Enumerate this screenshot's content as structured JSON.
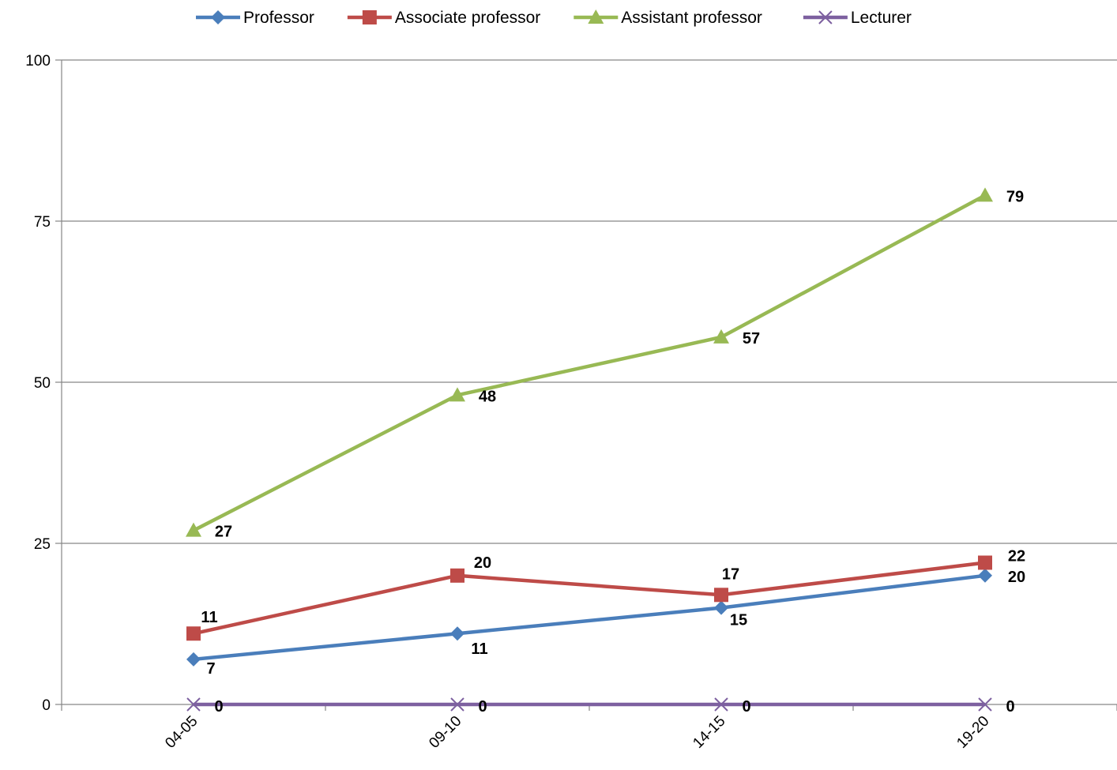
{
  "chart_data": {
    "type": "line",
    "categories": [
      "04-05",
      "09-10",
      "14-15",
      "19-20"
    ],
    "ylim": [
      0,
      100
    ],
    "yticks": [
      0,
      25,
      50,
      75,
      100
    ],
    "grid": true,
    "legend_position": "top",
    "series": [
      {
        "name": "Professor",
        "values": [
          7,
          11,
          15,
          20
        ],
        "color": "#4a7ebb",
        "marker": "diamond"
      },
      {
        "name": "Associate professor",
        "values": [
          11,
          20,
          17,
          22
        ],
        "color": "#be4b48",
        "marker": "square"
      },
      {
        "name": "Assistant professor",
        "values": [
          27,
          48,
          57,
          79
        ],
        "color": "#98b954",
        "marker": "triangle"
      },
      {
        "name": "Lecturer",
        "values": [
          0,
          0,
          0,
          0
        ],
        "color": "#7d60a0",
        "marker": "x"
      }
    ]
  }
}
